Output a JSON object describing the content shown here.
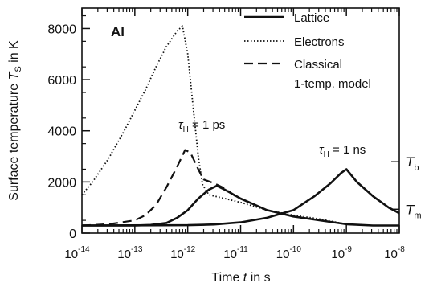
{
  "chart_data": {
    "type": "line",
    "panel_label": "Al",
    "xlabel": {
      "prefix": "Time ",
      "var": "t",
      "suffix": " in s"
    },
    "ylabel": {
      "prefix": "Surface temperature ",
      "var": "T",
      "sub": "S",
      "suffix": " in K"
    },
    "x_scale": "log",
    "xlim": [
      1e-14,
      1e-08
    ],
    "ylim": [
      0,
      8800
    ],
    "x_ticks": [
      {
        "exp": -14,
        "base": "10",
        "power": "-14"
      },
      {
        "exp": -13,
        "base": "10",
        "power": "-13"
      },
      {
        "exp": -12,
        "base": "10",
        "power": "-12"
      },
      {
        "exp": -11,
        "base": "10",
        "power": "-11"
      },
      {
        "exp": -10,
        "base": "10",
        "power": "-10"
      },
      {
        "exp": -9,
        "base": "10",
        "power": "-9"
      },
      {
        "exp": -8,
        "base": "10",
        "power": "-8"
      }
    ],
    "y_ticks": [
      {
        "value": 0,
        "label": "0"
      },
      {
        "value": 2000,
        "label": "2000"
      },
      {
        "value": 4000,
        "label": "4000"
      },
      {
        "value": 6000,
        "label": "6000"
      },
      {
        "value": 8000,
        "label": "8000"
      }
    ],
    "right_markers": [
      {
        "value": 2790,
        "var": "T",
        "sub": "b"
      },
      {
        "value": 933,
        "var": "T",
        "sub": "m"
      }
    ],
    "legend": {
      "placement": "top-right",
      "entries": [
        {
          "label": "Lattice",
          "style": "solid"
        },
        {
          "label": "Electrons",
          "style": "dotted"
        },
        {
          "label": "Classical",
          "style": "dashed"
        },
        {
          "label": "1-temp. model",
          "style": "none"
        }
      ]
    },
    "annotations": [
      {
        "var": "τ",
        "sub": "H",
        "text": " = 1 ps"
      },
      {
        "var": "τ",
        "sub": "H",
        "text": " = 1 ns"
      }
    ],
    "series": [
      {
        "name": "Lattice",
        "style": "solid",
        "points": [
          [
            -14,
            300
          ],
          [
            -13,
            300
          ],
          [
            -12.7,
            320
          ],
          [
            -12.4,
            400
          ],
          [
            -12.2,
            600
          ],
          [
            -12,
            900
          ],
          [
            -11.8,
            1350
          ],
          [
            -11.6,
            1700
          ],
          [
            -11.45,
            1850
          ],
          [
            -11.3,
            1700
          ],
          [
            -11,
            1350
          ],
          [
            -10.5,
            900
          ],
          [
            -10,
            650
          ],
          [
            -9.5,
            500
          ],
          [
            -9,
            350
          ],
          [
            -8.5,
            300
          ],
          [
            -8,
            300
          ]
        ]
      },
      {
        "name": "Lattice",
        "style": "solid",
        "points": [
          [
            -14,
            300
          ],
          [
            -12,
            310
          ],
          [
            -11.5,
            340
          ],
          [
            -11,
            420
          ],
          [
            -10.5,
            600
          ],
          [
            -10,
            900
          ],
          [
            -9.6,
            1450
          ],
          [
            -9.3,
            1950
          ],
          [
            -9.1,
            2350
          ],
          [
            -9,
            2500
          ],
          [
            -8.8,
            2000
          ],
          [
            -8.5,
            1450
          ],
          [
            -8.2,
            1000
          ],
          [
            -8,
            780
          ]
        ]
      },
      {
        "name": "Electrons",
        "style": "dotted",
        "points": [
          [
            -14,
            1500
          ],
          [
            -13.8,
            2000
          ],
          [
            -13.5,
            2900
          ],
          [
            -13.2,
            4000
          ],
          [
            -13,
            4800
          ],
          [
            -12.8,
            5600
          ],
          [
            -12.6,
            6500
          ],
          [
            -12.4,
            7300
          ],
          [
            -12.2,
            7900
          ],
          [
            -12.1,
            8100
          ],
          [
            -12,
            7000
          ],
          [
            -11.9,
            5000
          ],
          [
            -11.8,
            3000
          ],
          [
            -11.72,
            1900
          ],
          [
            -11.6,
            1500
          ],
          [
            -11.3,
            1350
          ],
          [
            -11,
            1200
          ],
          [
            -10.5,
            900
          ],
          [
            -10,
            700
          ],
          [
            -9.5,
            550
          ],
          [
            -9,
            350
          ],
          [
            -8.5,
            300
          ],
          [
            -8,
            300
          ]
        ]
      },
      {
        "name": "Classical",
        "style": "dashed",
        "points": [
          [
            -14,
            300
          ],
          [
            -13.5,
            350
          ],
          [
            -13,
            500
          ],
          [
            -12.8,
            700
          ],
          [
            -12.6,
            1100
          ],
          [
            -12.4,
            1800
          ],
          [
            -12.2,
            2600
          ],
          [
            -12.05,
            3250
          ],
          [
            -11.95,
            3150
          ],
          [
            -11.8,
            2500
          ],
          [
            -11.7,
            2100
          ],
          [
            -11.5,
            1950
          ],
          [
            -11.3,
            1750
          ],
          [
            -11.1,
            1450
          ]
        ]
      }
    ]
  }
}
